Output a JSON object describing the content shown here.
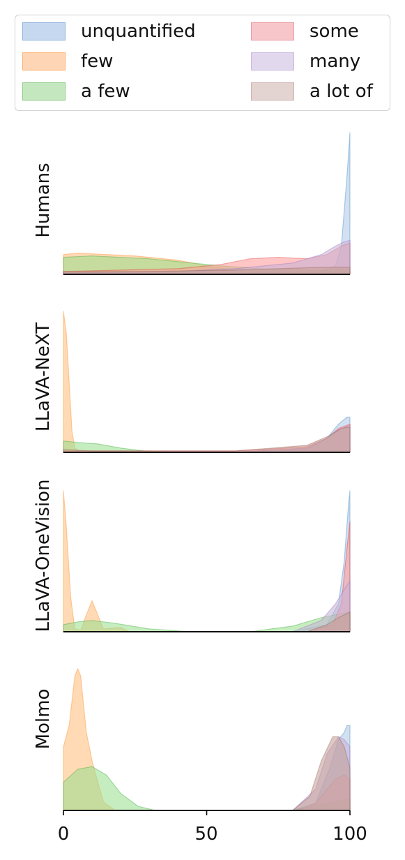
{
  "chart_data": {
    "type": "area",
    "legend": {
      "placement": "top",
      "columns": 2
    },
    "series_styles": [
      {
        "name": "unquantified",
        "fill": "#aec7e8",
        "stroke": "#1f77b4"
      },
      {
        "name": "few",
        "fill": "#ffbb78",
        "stroke": "#ff7f0e"
      },
      {
        "name": "a few",
        "fill": "#98df8a",
        "stroke": "#2ca02c"
      },
      {
        "name": "some",
        "fill": "#ff9896",
        "stroke": "#d62728"
      },
      {
        "name": "many",
        "fill": "#c5b0d5",
        "stroke": "#9467bd"
      },
      {
        "name": "a lot of",
        "fill": "#c49c94",
        "stroke": "#8c564b"
      }
    ],
    "x_axis": {
      "range": [
        0,
        100
      ],
      "ticks": [
        0,
        50,
        100
      ]
    },
    "grid": false,
    "panels": [
      {
        "ylabel": "Humans",
        "series": [
          {
            "name": "unquantified",
            "points": [
              [
                0,
                0
              ],
              [
                40,
                0
              ],
              [
                80,
                0.005
              ],
              [
                90,
                0.02
              ],
              [
                95,
                0.06
              ],
              [
                97,
                0.2
              ],
              [
                99,
                0.7
              ],
              [
                100,
                1.0
              ]
            ]
          },
          {
            "name": "few",
            "points": [
              [
                0,
                0.14
              ],
              [
                5,
                0.15
              ],
              [
                25,
                0.13
              ],
              [
                40,
                0.1
              ],
              [
                50,
                0.06
              ],
              [
                60,
                0.03
              ],
              [
                75,
                0.02
              ],
              [
                90,
                0.02
              ],
              [
                100,
                0.02
              ]
            ]
          },
          {
            "name": "a few",
            "points": [
              [
                0,
                0.12
              ],
              [
                10,
                0.13
              ],
              [
                30,
                0.11
              ],
              [
                45,
                0.08
              ],
              [
                55,
                0.06
              ],
              [
                70,
                0.04
              ],
              [
                85,
                0.03
              ],
              [
                100,
                0.03
              ]
            ]
          },
          {
            "name": "some",
            "points": [
              [
                0,
                0.02
              ],
              [
                20,
                0.03
              ],
              [
                40,
                0.04
              ],
              [
                55,
                0.07
              ],
              [
                65,
                0.11
              ],
              [
                75,
                0.12
              ],
              [
                85,
                0.11
              ],
              [
                92,
                0.14
              ],
              [
                97,
                0.2
              ],
              [
                100,
                0.22
              ]
            ]
          },
          {
            "name": "many",
            "points": [
              [
                0,
                0.01
              ],
              [
                40,
                0.02
              ],
              [
                60,
                0.04
              ],
              [
                80,
                0.08
              ],
              [
                90,
                0.14
              ],
              [
                95,
                0.2
              ],
              [
                98,
                0.23
              ],
              [
                100,
                0.24
              ]
            ]
          },
          {
            "name": "a lot of",
            "points": [
              [
                0,
                0.02
              ],
              [
                30,
                0.02
              ],
              [
                60,
                0.03
              ],
              [
                90,
                0.05
              ],
              [
                100,
                0.05
              ]
            ]
          }
        ]
      },
      {
        "ylabel": "LLaVA-NeXT",
        "series": [
          {
            "name": "unquantified",
            "points": [
              [
                0,
                0
              ],
              [
                60,
                0
              ],
              [
                85,
                0.02
              ],
              [
                92,
                0.1
              ],
              [
                96,
                0.2
              ],
              [
                99,
                0.25
              ],
              [
                100,
                0.25
              ]
            ]
          },
          {
            "name": "few",
            "points": [
              [
                0,
                1.0
              ],
              [
                1,
                0.85
              ],
              [
                2,
                0.5
              ],
              [
                3,
                0.15
              ],
              [
                4,
                0.03
              ],
              [
                6,
                0
              ],
              [
                100,
                0
              ]
            ]
          },
          {
            "name": "a few",
            "points": [
              [
                0,
                0.08
              ],
              [
                5,
                0.07
              ],
              [
                12,
                0.06
              ],
              [
                20,
                0.03
              ],
              [
                28,
                0.01
              ],
              [
                40,
                0
              ],
              [
                70,
                0
              ],
              [
                85,
                0.01
              ],
              [
                100,
                0.01
              ]
            ]
          },
          {
            "name": "some",
            "points": [
              [
                0,
                0.01
              ],
              [
                60,
                0.01
              ],
              [
                85,
                0.04
              ],
              [
                92,
                0.1
              ],
              [
                96,
                0.17
              ],
              [
                100,
                0.2
              ]
            ]
          },
          {
            "name": "many",
            "points": [
              [
                0,
                0
              ],
              [
                60,
                0
              ],
              [
                85,
                0.03
              ],
              [
                92,
                0.1
              ],
              [
                96,
                0.16
              ],
              [
                100,
                0.19
              ]
            ]
          },
          {
            "name": "a lot of",
            "points": [
              [
                0,
                0.02
              ],
              [
                10,
                0.01
              ],
              [
                60,
                0.01
              ],
              [
                85,
                0.05
              ],
              [
                93,
                0.12
              ],
              [
                97,
                0.17
              ],
              [
                100,
                0.18
              ]
            ]
          }
        ]
      },
      {
        "ylabel": "LLaVA-OneVision",
        "series": [
          {
            "name": "unquantified",
            "points": [
              [
                0,
                0
              ],
              [
                80,
                0
              ],
              [
                92,
                0.05
              ],
              [
                96,
                0.2
              ],
              [
                98,
                0.5
              ],
              [
                99.5,
                0.9
              ],
              [
                100,
                1.0
              ]
            ]
          },
          {
            "name": "few",
            "points": [
              [
                0,
                1.0
              ],
              [
                1,
                0.75
              ],
              [
                2.5,
                0.25
              ],
              [
                4,
                0.02
              ],
              [
                6,
                0.01
              ],
              [
                8,
                0.12
              ],
              [
                10,
                0.22
              ],
              [
                12,
                0.12
              ],
              [
                14,
                0.02
              ],
              [
                20,
                0.03
              ],
              [
                23,
                0
              ],
              [
                100,
                0
              ]
            ]
          },
          {
            "name": "a few",
            "points": [
              [
                0,
                0.05
              ],
              [
                5,
                0.07
              ],
              [
                10,
                0.08
              ],
              [
                18,
                0.06
              ],
              [
                30,
                0.02
              ],
              [
                45,
                0
              ],
              [
                65,
                0
              ],
              [
                80,
                0.04
              ],
              [
                90,
                0.1
              ],
              [
                100,
                0.14
              ]
            ]
          },
          {
            "name": "some",
            "points": [
              [
                0,
                0
              ],
              [
                85,
                0
              ],
              [
                94,
                0.05
              ],
              [
                97,
                0.2
              ],
              [
                99,
                0.6
              ],
              [
                100,
                0.78
              ]
            ]
          },
          {
            "name": "many",
            "points": [
              [
                0,
                0
              ],
              [
                80,
                0
              ],
              [
                90,
                0.08
              ],
              [
                95,
                0.2
              ],
              [
                98,
                0.3
              ],
              [
                100,
                0.36
              ]
            ]
          },
          {
            "name": "a lot of",
            "points": [
              [
                0,
                0
              ],
              [
                85,
                0
              ],
              [
                92,
                0.05
              ],
              [
                96,
                0.1
              ],
              [
                100,
                0.14
              ]
            ]
          }
        ]
      },
      {
        "ylabel": "Molmo",
        "series": [
          {
            "name": "unquantified",
            "points": [
              [
                0,
                0
              ],
              [
                80,
                0
              ],
              [
                88,
                0.05
              ],
              [
                93,
                0.3
              ],
              [
                96,
                0.5
              ],
              [
                98,
                0.55
              ],
              [
                99,
                0.6
              ],
              [
                100,
                0.6
              ]
            ]
          },
          {
            "name": "few",
            "points": [
              [
                0,
                0.45
              ],
              [
                2,
                0.6
              ],
              [
                4,
                0.95
              ],
              [
                5,
                1.0
              ],
              [
                6,
                0.95
              ],
              [
                8,
                0.55
              ],
              [
                10,
                0.35
              ],
              [
                12,
                0.2
              ],
              [
                14,
                0.06
              ],
              [
                18,
                0
              ],
              [
                100,
                0
              ]
            ]
          },
          {
            "name": "a few",
            "points": [
              [
                0,
                0.2
              ],
              [
                5,
                0.29
              ],
              [
                10,
                0.31
              ],
              [
                15,
                0.25
              ],
              [
                20,
                0.12
              ],
              [
                26,
                0.03
              ],
              [
                32,
                0
              ],
              [
                80,
                0
              ],
              [
                90,
                0.04
              ],
              [
                100,
                0.08
              ]
            ]
          },
          {
            "name": "some",
            "points": [
              [
                0,
                0
              ],
              [
                82,
                0
              ],
              [
                88,
                0.05
              ],
              [
                92,
                0.15
              ],
              [
                95,
                0.22
              ],
              [
                98,
                0.25
              ],
              [
                100,
                0.22
              ]
            ]
          },
          {
            "name": "many",
            "points": [
              [
                0,
                0
              ],
              [
                80,
                0
              ],
              [
                88,
                0.15
              ],
              [
                92,
                0.4
              ],
              [
                96,
                0.52
              ],
              [
                98,
                0.5
              ],
              [
                100,
                0.45
              ]
            ]
          },
          {
            "name": "a lot of",
            "points": [
              [
                0,
                0
              ],
              [
                80,
                0
              ],
              [
                86,
                0.1
              ],
              [
                90,
                0.35
              ],
              [
                94,
                0.52
              ],
              [
                96,
                0.52
              ],
              [
                98,
                0.45
              ],
              [
                100,
                0.3
              ]
            ]
          }
        ]
      }
    ]
  }
}
